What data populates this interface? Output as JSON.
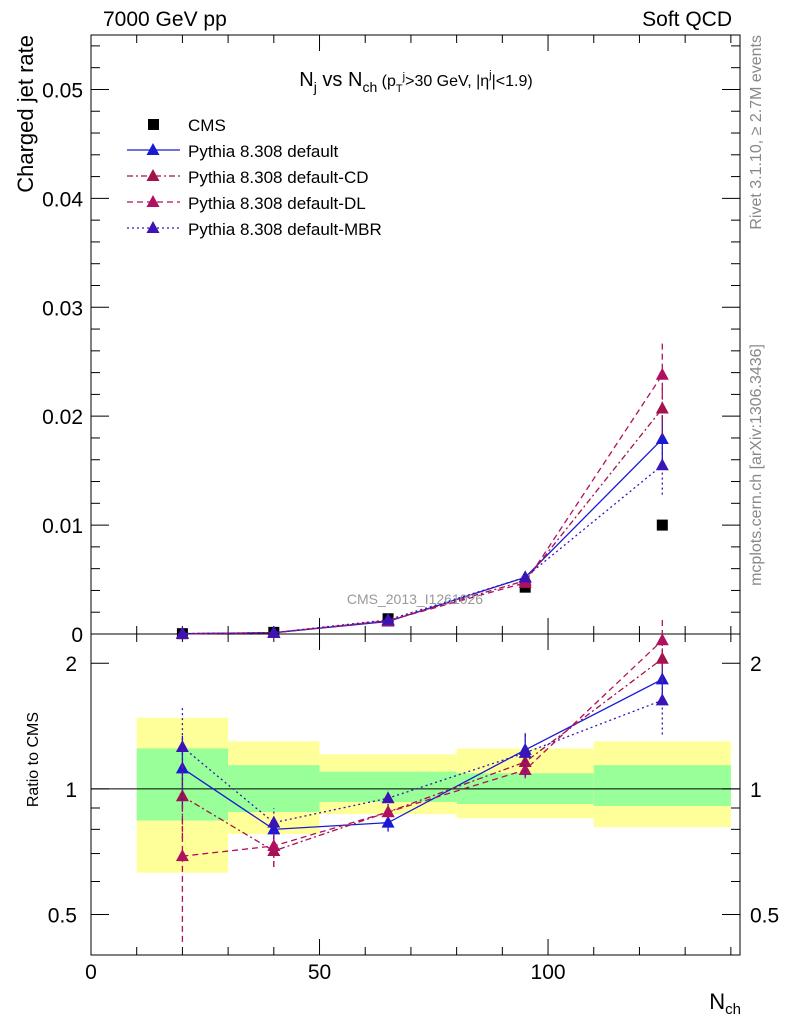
{
  "header": {
    "left": "7000 GeV pp",
    "right": "Soft QCD"
  },
  "side_labels": {
    "rivet": "Rivet 3.1.10, ≥ 2.7M events",
    "mcplots": "mcplots.cern.ch [arXiv:1306.3436]"
  },
  "watermark": "CMS_2013_I1261026",
  "colors": {
    "cms": "#000000",
    "default": "#1a1ad4",
    "cd": "#a0144a",
    "dl": "#b01060",
    "mbr": "#3a14b4",
    "band_inner": "#99ff99",
    "band_outer": "#ffff99"
  },
  "chart_data": [
    {
      "type": "scatter",
      "title_parts": {
        "n": "N",
        "j": "j",
        "vs": " vs N",
        "ch": "ch",
        "cond": " (p",
        "T": "T",
        "jsup": "j",
        "gev": ">30 GeV, |η",
        "etasup": "j",
        "end": "|<1.9)"
      },
      "ylabel": "Charged jet rate",
      "ylim": [
        0,
        0.055
      ],
      "yticks": [
        {
          "v": 0,
          "label": "0"
        },
        {
          "v": 0.01,
          "label": "0.01"
        },
        {
          "v": 0.02,
          "label": "0.02"
        },
        {
          "v": 0.03,
          "label": "0.03"
        },
        {
          "v": 0.04,
          "label": "0.04"
        },
        {
          "v": 0.05,
          "label": "0.05"
        }
      ],
      "xlim": [
        0,
        142
      ],
      "legend": [
        "CMS",
        "Pythia 8.308 default",
        "Pythia 8.308 default-CD",
        "Pythia 8.308 default-DL",
        "Pythia 8.308 default-MBR"
      ],
      "series": [
        {
          "name": "CMS",
          "x": [
            20,
            40,
            65,
            95,
            125
          ],
          "y": [
            3e-05,
            0.00015,
            0.0014,
            0.0043,
            0.01
          ]
        },
        {
          "name": "Pythia 8.308 default",
          "x": [
            20,
            40,
            65,
            95,
            125
          ],
          "y": [
            3e-05,
            0.00012,
            0.00115,
            0.0052,
            0.0179
          ],
          "err": [
            1e-05,
            2e-05,
            8e-05,
            0.0004,
            0.0022
          ]
        },
        {
          "name": "Pythia 8.308 default-CD",
          "x": [
            20,
            40,
            65,
            95,
            125
          ],
          "y": [
            2e-05,
            0.00011,
            0.00122,
            0.0049,
            0.0207
          ],
          "err": [
            1e-05,
            2e-05,
            8e-05,
            0.0004,
            0.0025
          ]
        },
        {
          "name": "Pythia 8.308 default-DL",
          "x": [
            20,
            40,
            65,
            95,
            125
          ],
          "y": [
            2e-05,
            0.00011,
            0.00122,
            0.0047,
            0.0238
          ],
          "err": [
            1e-05,
            2e-05,
            8e-05,
            0.0004,
            0.0032
          ]
        },
        {
          "name": "Pythia 8.308 default-MBR",
          "x": [
            20,
            40,
            65,
            95,
            125
          ],
          "y": [
            4e-05,
            0.00012,
            0.0013,
            0.0052,
            0.0155
          ],
          "err": [
            1e-05,
            2e-05,
            8e-05,
            0.0004,
            0.0027
          ]
        }
      ]
    },
    {
      "type": "scatter",
      "ylabel": "Ratio to CMS",
      "xlabel_parts": {
        "n": "N",
        "ch": "ch"
      },
      "ylim": [
        0.4,
        2.35
      ],
      "yscale": "log",
      "yticks": [
        {
          "v": 0.5,
          "label": "0.5"
        },
        {
          "v": 1,
          "label": "1"
        },
        {
          "v": 2,
          "label": "2"
        }
      ],
      "xticks": [
        {
          "v": 0,
          "label": "0"
        },
        {
          "v": 50,
          "label": "50"
        },
        {
          "v": 100,
          "label": "100"
        }
      ],
      "xlim": [
        0,
        142
      ],
      "bands": [
        {
          "x0": 10,
          "x1": 30,
          "inner": [
            0.84,
            1.25
          ],
          "outer": [
            0.63,
            1.48
          ]
        },
        {
          "x0": 30,
          "x1": 50,
          "inner": [
            0.88,
            1.14
          ],
          "outer": [
            0.78,
            1.3
          ]
        },
        {
          "x0": 50,
          "x1": 80,
          "inner": [
            0.93,
            1.1
          ],
          "outer": [
            0.87,
            1.21
          ]
        },
        {
          "x0": 80,
          "x1": 110,
          "inner": [
            0.92,
            1.09
          ],
          "outer": [
            0.85,
            1.25
          ]
        },
        {
          "x0": 110,
          "x1": 140,
          "inner": [
            0.91,
            1.14
          ],
          "outer": [
            0.81,
            1.3
          ]
        }
      ],
      "series": [
        {
          "name": "Pythia 8.308 default",
          "x": [
            20,
            40,
            65,
            95,
            125
          ],
          "y": [
            1.12,
            0.8,
            0.83,
            1.24,
            1.83
          ],
          "err": [
            0.22,
            0.05,
            0.04,
            0.12,
            0.22
          ]
        },
        {
          "name": "Pythia 8.308 default-CD",
          "x": [
            20,
            40,
            65,
            95,
            125
          ],
          "y": [
            0.96,
            0.71,
            0.88,
            1.16,
            2.05
          ],
          "err": [
            0.2,
            0.06,
            0.03,
            0.05,
            0.25
          ]
        },
        {
          "name": "Pythia 8.308 default-DL",
          "x": [
            20,
            40,
            65,
            95,
            125
          ],
          "y": [
            0.69,
            0.73,
            0.88,
            1.11,
            2.27
          ],
          "err": [
            0.26,
            0.08,
            0.03,
            0.05,
            0.3
          ]
        },
        {
          "name": "Pythia 8.308 default-MBR",
          "x": [
            20,
            40,
            65,
            95,
            125
          ],
          "y": [
            1.26,
            0.83,
            0.95,
            1.22,
            1.63
          ],
          "err": [
            0.32,
            0.07,
            0.04,
            0.15,
            0.28
          ]
        }
      ]
    }
  ]
}
